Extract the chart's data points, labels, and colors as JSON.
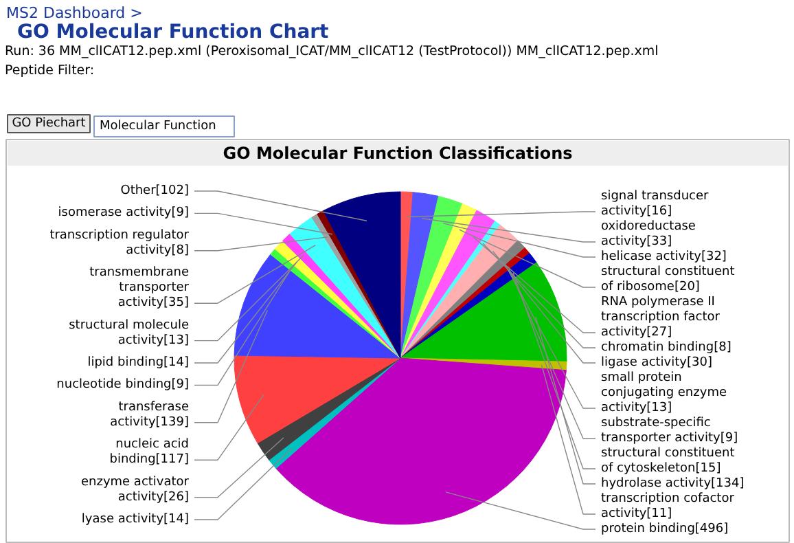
{
  "chart_data": {
    "type": "pie",
    "title": "GO Molecular Function Classifications",
    "categories": [
      "signal transducer activity[16]",
      "oxidoreductase activity[33]",
      "helicase activity[32]",
      "structural constituent of ribosome[20]",
      "RNA polymerase II transcription factor activity[27]",
      "chromatin binding[8]",
      "ligase activity[30]",
      "small protein conjugating enzyme activity[13]",
      "substrate-specific transporter activity[9]",
      "structural constituent of cytoskeleton[15]",
      "hydrolase activity[134]",
      "transcription cofactor activity[11]",
      "protein binding[496]",
      "lyase activity[14]",
      "enzyme activator activity[26]",
      "nucleic acid binding[117]",
      "transferase activity[139]",
      "nucleotide binding[9]",
      "lipid binding[14]",
      "structural molecule activity[13]",
      "transmembrane transporter activity[35]",
      "transcription regulator activity[8]",
      "isomerase activity[9]",
      "Other[102]"
    ],
    "values": [
      16,
      33,
      32,
      20,
      27,
      8,
      30,
      13,
      9,
      15,
      134,
      11,
      496,
      14,
      26,
      117,
      139,
      9,
      14,
      13,
      35,
      8,
      9,
      102
    ],
    "colors": [
      "#ff5555",
      "#5555ff",
      "#55ff55",
      "#ffff55",
      "#ff55ff",
      "#55ffff",
      "#ffafaf",
      "#808080",
      "#c00000",
      "#0000c0",
      "#00c000",
      "#c0c000",
      "#c000c0",
      "#00c0c0",
      "#404040",
      "#ff4040",
      "#4040ff",
      "#40ff40",
      "#ffff40",
      "#ff40ff",
      "#40ffff",
      "#a0a0a0",
      "#800000",
      "#000080"
    ],
    "annotations": [
      "MS2 Dashboard >",
      "GO Molecular Function Chart",
      "Run: 36 MM_clICAT12.pep.xml (Peroxisomal_ICAT/MM_clICAT12 (TestProtocol)) MM_clICAT12.pep.xml",
      "Peptide Filter:",
      "GO Piechart",
      "Molecular Function"
    ]
  }
}
